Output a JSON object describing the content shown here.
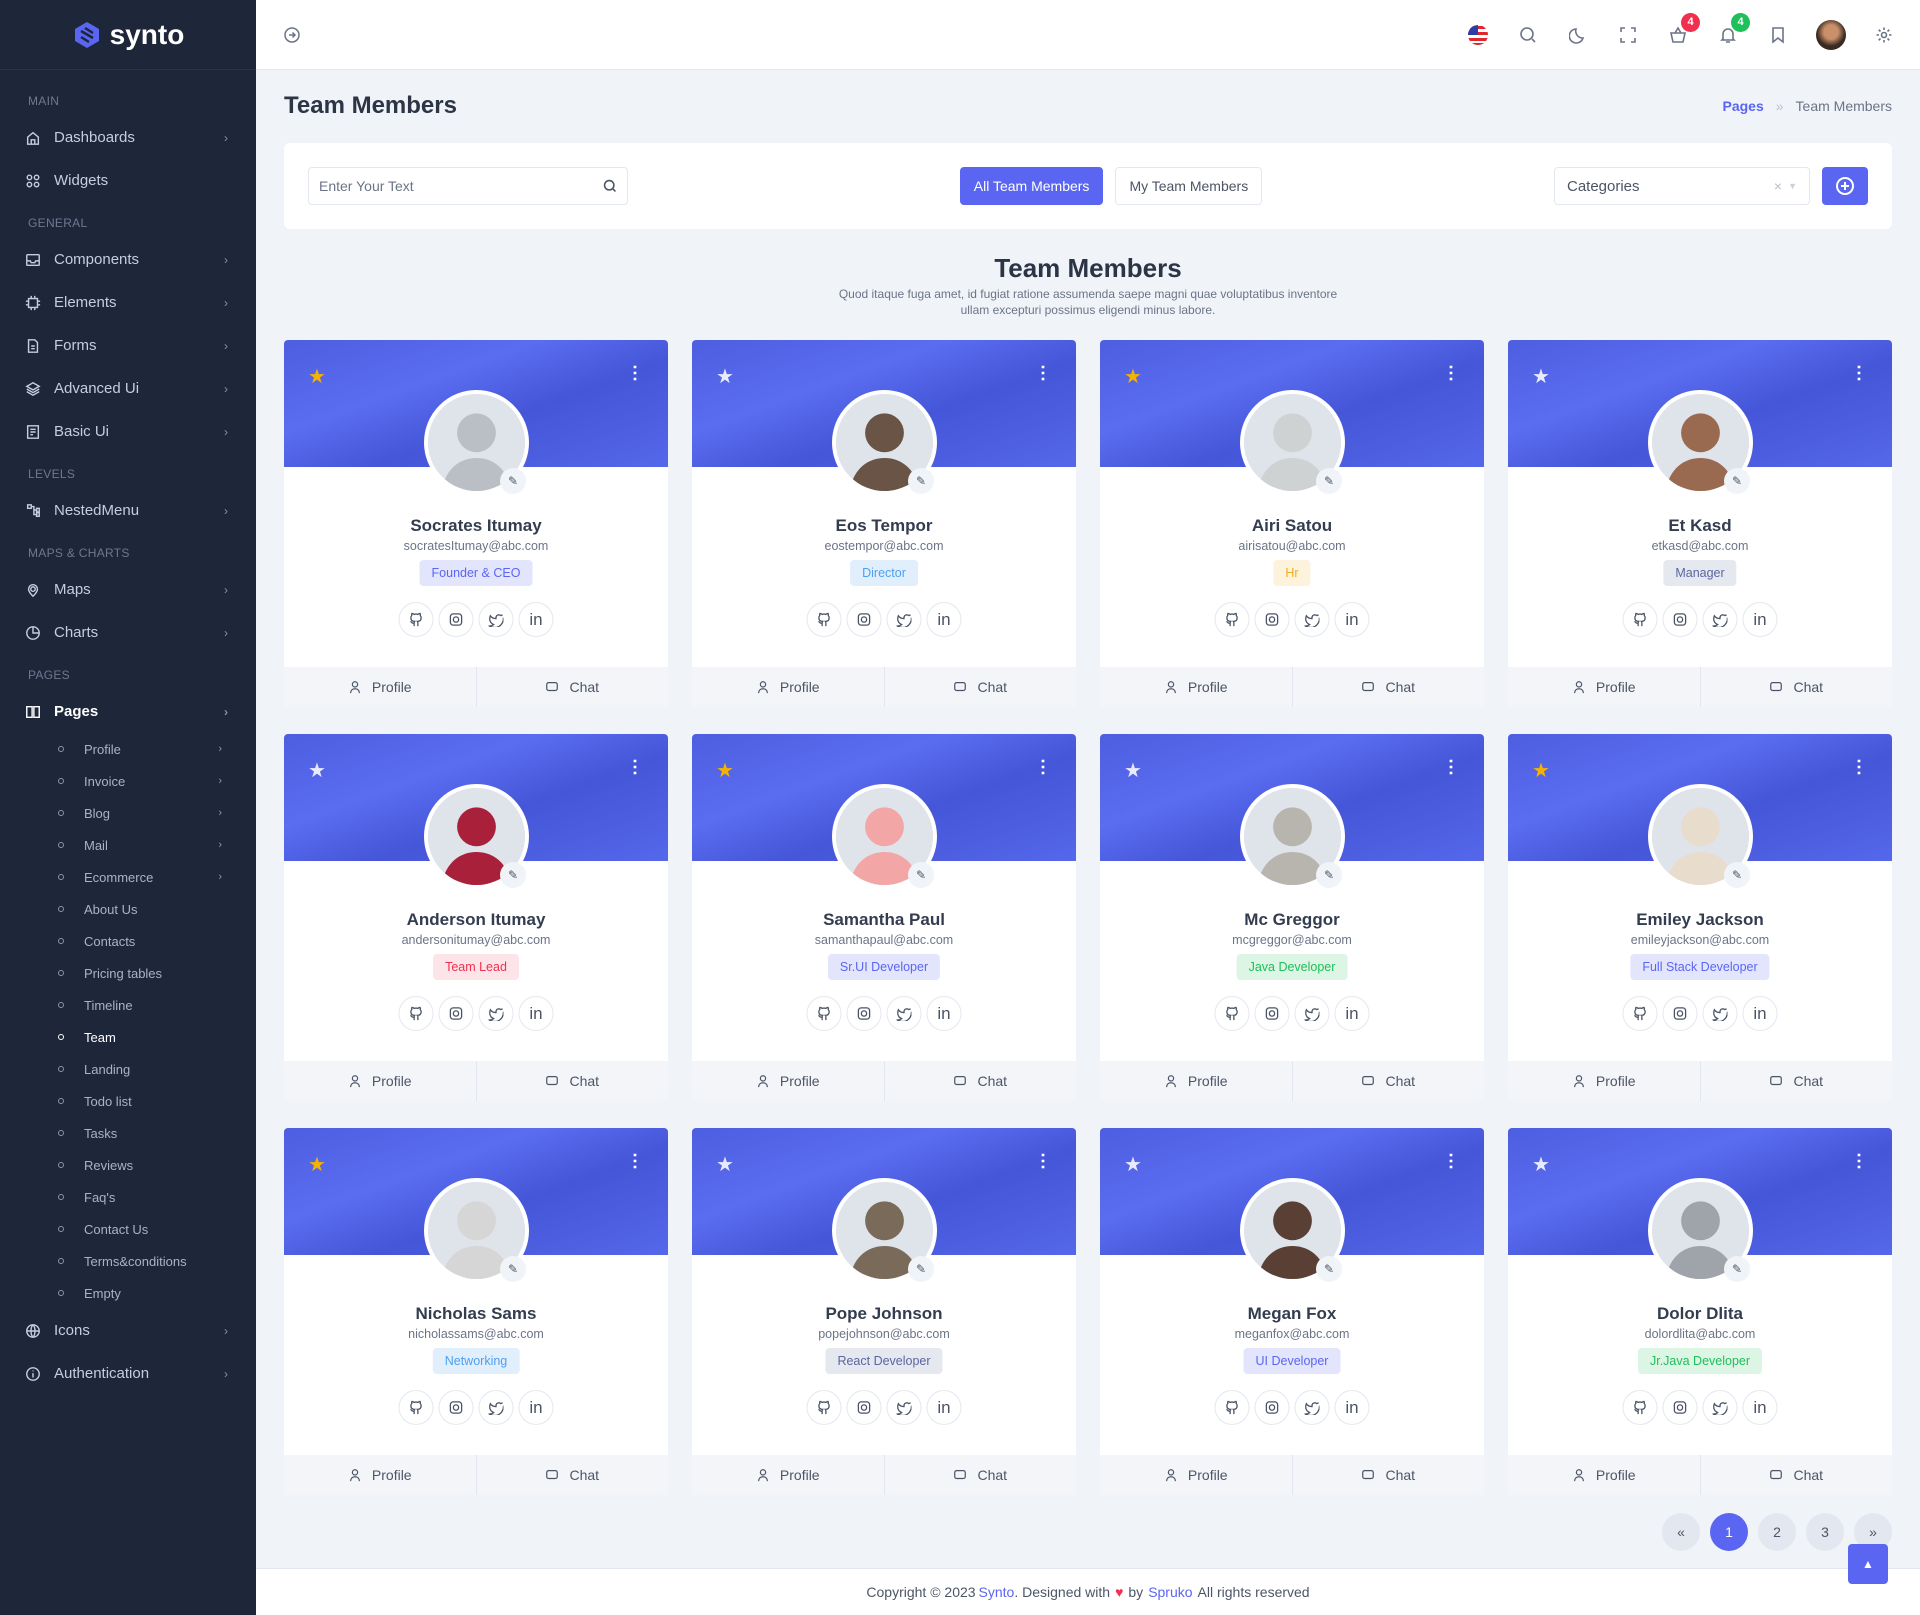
{
  "brand": {
    "name": "synto",
    "accent": "#5a66f1"
  },
  "sidebar": {
    "sections": [
      {
        "title": "MAIN",
        "items": [
          {
            "label": "Dashboards",
            "icon": "home-icon",
            "chevron": true
          },
          {
            "label": "Widgets",
            "icon": "grid-icon",
            "chevron": false
          }
        ]
      },
      {
        "title": "GENERAL",
        "items": [
          {
            "label": "Components",
            "icon": "inbox-icon",
            "chevron": true
          },
          {
            "label": "Elements",
            "icon": "cpu-icon",
            "chevron": true
          },
          {
            "label": "Forms",
            "icon": "file-icon",
            "chevron": true
          },
          {
            "label": "Advanced Ui",
            "icon": "layers-icon",
            "chevron": true
          },
          {
            "label": "Basic Ui",
            "icon": "doc-icon",
            "chevron": true
          }
        ]
      },
      {
        "title": "LEVELS",
        "items": [
          {
            "label": "NestedMenu",
            "icon": "tree-icon",
            "chevron": true
          }
        ]
      },
      {
        "title": "MAPS & CHARTS",
        "items": [
          {
            "label": "Maps",
            "icon": "map-pin-icon",
            "chevron": true
          },
          {
            "label": "Charts",
            "icon": "pie-chart-icon",
            "chevron": true
          }
        ]
      },
      {
        "title": "PAGES",
        "items": [
          {
            "label": "Pages",
            "icon": "book-icon",
            "chevron": true,
            "active": true,
            "sub": [
              {
                "label": "Profile",
                "chevron": true
              },
              {
                "label": "Invoice",
                "chevron": true
              },
              {
                "label": "Blog",
                "chevron": true
              },
              {
                "label": "Mail",
                "chevron": true
              },
              {
                "label": "Ecommerce",
                "chevron": true
              },
              {
                "label": "About Us"
              },
              {
                "label": "Contacts"
              },
              {
                "label": "Pricing tables"
              },
              {
                "label": "Timeline"
              },
              {
                "label": "Team",
                "active": true
              },
              {
                "label": "Landing"
              },
              {
                "label": "Todo list"
              },
              {
                "label": "Tasks"
              },
              {
                "label": "Reviews"
              },
              {
                "label": "Faq's"
              },
              {
                "label": "Contact Us"
              },
              {
                "label": "Terms&conditions"
              },
              {
                "label": "Empty"
              }
            ]
          },
          {
            "label": "Icons",
            "icon": "globe-icon",
            "chevron": true
          },
          {
            "label": "Authentication",
            "icon": "info-icon",
            "chevron": true
          }
        ]
      }
    ]
  },
  "header": {
    "cart_count": "4",
    "cart_badge_color": "#f0304f",
    "notif_count": "4",
    "notif_badge_color": "#1fbf5a"
  },
  "page": {
    "title": "Team Members",
    "breadcrumb": [
      "Pages",
      "Team Members"
    ]
  },
  "toolbar": {
    "search_placeholder": "Enter Your Text",
    "tabs": [
      "All Team Members",
      "My Team Members"
    ],
    "active_tab": 0,
    "categories_placeholder": "Categories"
  },
  "section": {
    "title": "Team Members",
    "description": "Quod itaque fuga amet, id fugiat ratione assumenda saepe magni quae voluptatibus inventore ullam excepturi possimus eligendi minus labore."
  },
  "card_actions": {
    "profile": "Profile",
    "chat": "Chat"
  },
  "members": [
    {
      "name": "Socrates Itumay",
      "email": "socratesItumay@abc.com",
      "role": "Founder & CEO",
      "role_bg": "#e3e5fd",
      "role_fg": "#5a66f1",
      "starred": true,
      "avatar_color": "#b9bfc4"
    },
    {
      "name": "Eos Tempor",
      "email": "eostempor@abc.com",
      "role": "Director",
      "role_bg": "#e1effd",
      "role_fg": "#4d9ff0",
      "starred": false,
      "avatar_color": "#6a5446"
    },
    {
      "name": "Airi Satou",
      "email": "airisatou@abc.com",
      "role": "Hr",
      "role_bg": "#fdf3dc",
      "role_fg": "#f0ad1c",
      "starred": true,
      "avatar_color": "#cfd2d2"
    },
    {
      "name": "Et Kasd",
      "email": "etkasd@abc.com",
      "role": "Manager",
      "role_bg": "#e6e8f0",
      "role_fg": "#5a66a0",
      "starred": false,
      "avatar_color": "#9a6a50"
    },
    {
      "name": "Anderson Itumay",
      "email": "andersonitumay@abc.com",
      "role": "Team Lead",
      "role_bg": "#fde4e8",
      "role_fg": "#f0304f",
      "starred": false,
      "avatar_color": "#a8203a"
    },
    {
      "name": "Samantha Paul",
      "email": "samanthapaul@abc.com",
      "role": "Sr.UI Developer",
      "role_bg": "#e3e5fd",
      "role_fg": "#5a66f1",
      "starred": true,
      "avatar_color": "#f2a6a6"
    },
    {
      "name": "Mc Greggor",
      "email": "mcgreggor@abc.com",
      "role": "Java Developer",
      "role_bg": "#ddf5e4",
      "role_fg": "#1fbf5a",
      "starred": false,
      "avatar_color": "#b8b4ae"
    },
    {
      "name": "Emiley Jackson",
      "email": "emileyjackson@abc.com",
      "role": "Full Stack Developer",
      "role_bg": "#e3e5fd",
      "role_fg": "#5a66f1",
      "starred": true,
      "avatar_color": "#e8dccd"
    },
    {
      "name": "Nicholas Sams",
      "email": "nicholassams@abc.com",
      "role": "Networking",
      "role_bg": "#e1effd",
      "role_fg": "#4d9ff0",
      "starred": true,
      "avatar_color": "#d6d6d6"
    },
    {
      "name": "Pope Johnson",
      "email": "popejohnson@abc.com",
      "role": "React Developer",
      "role_bg": "#e6e8f0",
      "role_fg": "#5a66a0",
      "starred": false,
      "avatar_color": "#7a6a5a"
    },
    {
      "name": "Megan Fox",
      "email": "meganfox@abc.com",
      "role": "UI Developer",
      "role_bg": "#e3e5fd",
      "role_fg": "#5a66f1",
      "starred": false,
      "avatar_color": "#5a4034"
    },
    {
      "name": "Dolor Dlita",
      "email": "dolordlita@abc.com",
      "role": "Jr.Java Developer",
      "role_bg": "#ddf5e4",
      "role_fg": "#1fbf5a",
      "starred": false,
      "avatar_color": "#9ea4aa"
    }
  ],
  "pagination": {
    "prev": "«",
    "pages": [
      "1",
      "2",
      "3"
    ],
    "current": "1",
    "next": "»"
  },
  "footer": {
    "prefix": "Copyright © 2023",
    "brand": "Synto",
    "mid": ". Designed with",
    "by": "by",
    "company": "Spruko",
    "suffix": "All rights reserved"
  }
}
